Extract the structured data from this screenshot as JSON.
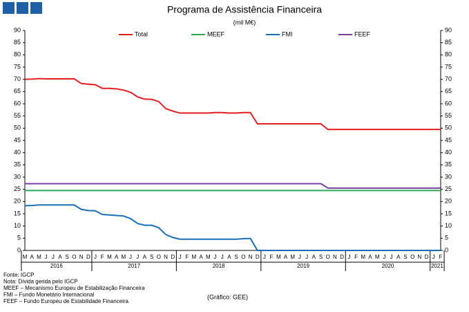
{
  "chart_data": {
    "type": "line",
    "title": "Programa de Assistência Financeira",
    "subtitle": "(mil M€)",
    "categories": [
      "M",
      "A",
      "M",
      "J",
      "J",
      "A",
      "S",
      "O",
      "N",
      "D",
      "J",
      "F",
      "M",
      "A",
      "M",
      "J",
      "J",
      "A",
      "S",
      "O",
      "N",
      "D",
      "J",
      "F",
      "M",
      "A",
      "M",
      "J",
      "J",
      "A",
      "S",
      "O",
      "N",
      "D",
      "J",
      "F",
      "M",
      "A",
      "M",
      "J",
      "J",
      "A",
      "S",
      "O",
      "N",
      "D",
      "J",
      "F",
      "M",
      "A",
      "M",
      "J",
      "J",
      "A",
      "S",
      "O",
      "N",
      "D",
      "J",
      "F"
    ],
    "years": [
      "2016",
      "2017",
      "2018",
      "2019",
      "2020",
      "2021"
    ],
    "series": [
      {
        "name": "Total",
        "color": "#e41e1e",
        "values": [
          70,
          70.1,
          70.3,
          70.2,
          70.2,
          70.2,
          70.2,
          70.2,
          68.3,
          68,
          67.8,
          66.3,
          66.3,
          66.1,
          65.6,
          64.7,
          62.8,
          61.9,
          61.8,
          60.9,
          58,
          57,
          56.2,
          56.2,
          56.2,
          56.2,
          56.2,
          56.4,
          56.4,
          56.2,
          56.2,
          56.4,
          56.4,
          51.8,
          51.8,
          51.8,
          51.8,
          51.8,
          51.8,
          51.8,
          51.8,
          51.8,
          51.8,
          49.5,
          49.5,
          49.5,
          49.5,
          49.5,
          49.5,
          49.5,
          49.5,
          49.5,
          49.5,
          49.5,
          49.5,
          49.5,
          49.5,
          49.5,
          49.5,
          49.5
        ]
      },
      {
        "name": "MEEF",
        "color": "#2aa85a",
        "values": [
          24.5,
          24.5,
          24.5,
          24.5,
          24.5,
          24.5,
          24.5,
          24.5,
          24.5,
          24.5,
          24.5,
          24.5,
          24.5,
          24.5,
          24.5,
          24.5,
          24.5,
          24.5,
          24.5,
          24.5,
          24.5,
          24.5,
          24.5,
          24.5,
          24.5,
          24.5,
          24.5,
          24.5,
          24.5,
          24.5,
          24.5,
          24.5,
          24.5,
          24.5,
          24.5,
          24.5,
          24.5,
          24.5,
          24.5,
          24.5,
          24.5,
          24.5,
          24.5,
          24.5,
          24.5,
          24.5,
          24.5,
          24.5,
          24.5,
          24.5,
          24.5,
          24.5,
          24.5,
          24.5,
          24.5,
          24.5,
          24.5,
          24.5,
          24.5,
          24.5
        ]
      },
      {
        "name": "FMI",
        "color": "#1a6eb5",
        "values": [
          18.3,
          18.4,
          18.6,
          18.6,
          18.6,
          18.6,
          18.6,
          18.6,
          16.8,
          16.3,
          16.2,
          14.7,
          14.5,
          14.3,
          14.1,
          13,
          11,
          10.3,
          10.3,
          9.3,
          6.5,
          5.3,
          4.6,
          4.6,
          4.6,
          4.6,
          4.6,
          4.6,
          4.6,
          4.6,
          4.6,
          4.8,
          4.9,
          0,
          0,
          0,
          0,
          0,
          0,
          0,
          0,
          0,
          0,
          0,
          0,
          0,
          0,
          0,
          0,
          0,
          0,
          0,
          0,
          0,
          0,
          0,
          0,
          0,
          0,
          0
        ]
      },
      {
        "name": "FEEF",
        "color": "#7a3fa0",
        "values": [
          27.3,
          27.3,
          27.3,
          27.3,
          27.3,
          27.3,
          27.3,
          27.3,
          27.3,
          27.3,
          27.3,
          27.3,
          27.3,
          27.3,
          27.3,
          27.3,
          27.3,
          27.3,
          27.3,
          27.3,
          27.3,
          27.3,
          27.3,
          27.3,
          27.3,
          27.3,
          27.3,
          27.3,
          27.3,
          27.3,
          27.3,
          27.3,
          27.3,
          27.3,
          27.3,
          27.3,
          27.3,
          27.3,
          27.3,
          27.3,
          27.3,
          27.3,
          27.3,
          25.5,
          25.5,
          25.5,
          25.5,
          25.5,
          25.5,
          25.5,
          25.5,
          25.5,
          25.5,
          25.5,
          25.5,
          25.5,
          25.5,
          25.5,
          25.5,
          25.5
        ]
      }
    ],
    "ylim": [
      0,
      90
    ],
    "yticks": [
      0,
      5,
      10,
      15,
      20,
      25,
      30,
      35,
      40,
      45,
      50,
      55,
      60,
      65,
      70,
      75,
      80,
      85,
      90
    ],
    "y2lim": [
      0,
      90
    ],
    "y2ticks": [
      0,
      5,
      10,
      15,
      20,
      25,
      30,
      35,
      40,
      45,
      50,
      55,
      60,
      65,
      70,
      75,
      80,
      85,
      90
    ],
    "grid": false,
    "legend": "top",
    "notes": [
      "Fonte: IGCP",
      "Nota: Dívida gerida pelo IGCP",
      "MEEF – Mecanismo Europeu de Estabilização Financeira",
      "FMI – Fundo Monetário Internacional",
      "FEEF – Fundo Europeu de Estabilidade Financeira"
    ],
    "source": "(Gráfico: GEE)"
  }
}
